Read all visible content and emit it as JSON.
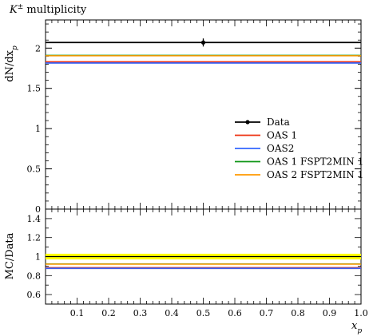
{
  "chart_data": [
    {
      "type": "line",
      "title": "K± multiplicity",
      "title_main": "K",
      "title_sup": "±",
      "title_rest": " multiplicity",
      "ylabel": "dN/dxₚ",
      "ylabel_main": "dN/dx",
      "ylabel_sub": "p",
      "ylim": [
        0,
        2.35
      ],
      "xlim": [
        0,
        1.0
      ],
      "yticks": [
        0,
        0.5,
        1,
        1.5,
        2
      ],
      "ytick_labels": [
        "0",
        "0.5",
        "1",
        "1.5",
        "2"
      ],
      "grid": false,
      "legend_position": "right",
      "series": [
        {
          "name": "Data",
          "color": "#000000",
          "kind": "point",
          "x": [
            0.5
          ],
          "y": [
            2.07
          ],
          "yerr": [
            0.05
          ]
        },
        {
          "name": "OAS 1",
          "color": "#ee3311",
          "kind": "hline",
          "y": 1.83
        },
        {
          "name": "OAS2",
          "color": "#3366ff",
          "kind": "hline",
          "y": 1.815
        },
        {
          "name": "OAS 1 FSPT2MIN 1",
          "color": "#109618",
          "kind": "hline",
          "y": 1.91
        },
        {
          "name": "OAS 2 FSPT2MIN 1",
          "color": "#ff9900",
          "kind": "hline",
          "y": 1.905
        }
      ],
      "data_line": {
        "y": 2.07,
        "color": "#000000"
      },
      "hidden_line": {
        "y": 1.82,
        "color": "#6b3fa0"
      }
    },
    {
      "type": "line",
      "ylabel": "MC/Data",
      "xlabel": "xₚ",
      "xlabel_main": "x",
      "xlabel_sub": "p",
      "ylim": [
        0.5,
        1.5
      ],
      "xlim": [
        0,
        1.0
      ],
      "yticks": [
        0.6,
        0.8,
        1,
        1.2,
        1.4
      ],
      "ytick_labels": [
        "0.6",
        "0.8",
        "1",
        "1.2",
        "1.4"
      ],
      "xticks": [
        0.1,
        0.2,
        0.3,
        0.4,
        0.5,
        0.6,
        0.7,
        0.8,
        0.9,
        1.0
      ],
      "xtick_labels": [
        "0.1",
        "0.2",
        "0.3",
        "0.4",
        "0.5",
        "0.6",
        "0.7",
        "0.8",
        "0.9",
        "1.0"
      ],
      "band": {
        "center": 1.0,
        "half_width": 0.03,
        "color": "#ffff00"
      },
      "series": [
        {
          "name": "OAS 1",
          "color": "#ee3311",
          "kind": "hline",
          "y": 0.883
        },
        {
          "name": "OAS2",
          "color": "#3366ff",
          "kind": "hline",
          "y": 0.877
        },
        {
          "name": "OAS 1 FSPT2MIN 1",
          "color": "#109618",
          "kind": "hline",
          "y": 0.922
        },
        {
          "name": "OAS 2 FSPT2MIN 1",
          "color": "#ff9900",
          "kind": "hline",
          "y": 0.92
        }
      ],
      "hidden_line": {
        "y": 0.878,
        "color": "#6b3fa0"
      }
    }
  ]
}
